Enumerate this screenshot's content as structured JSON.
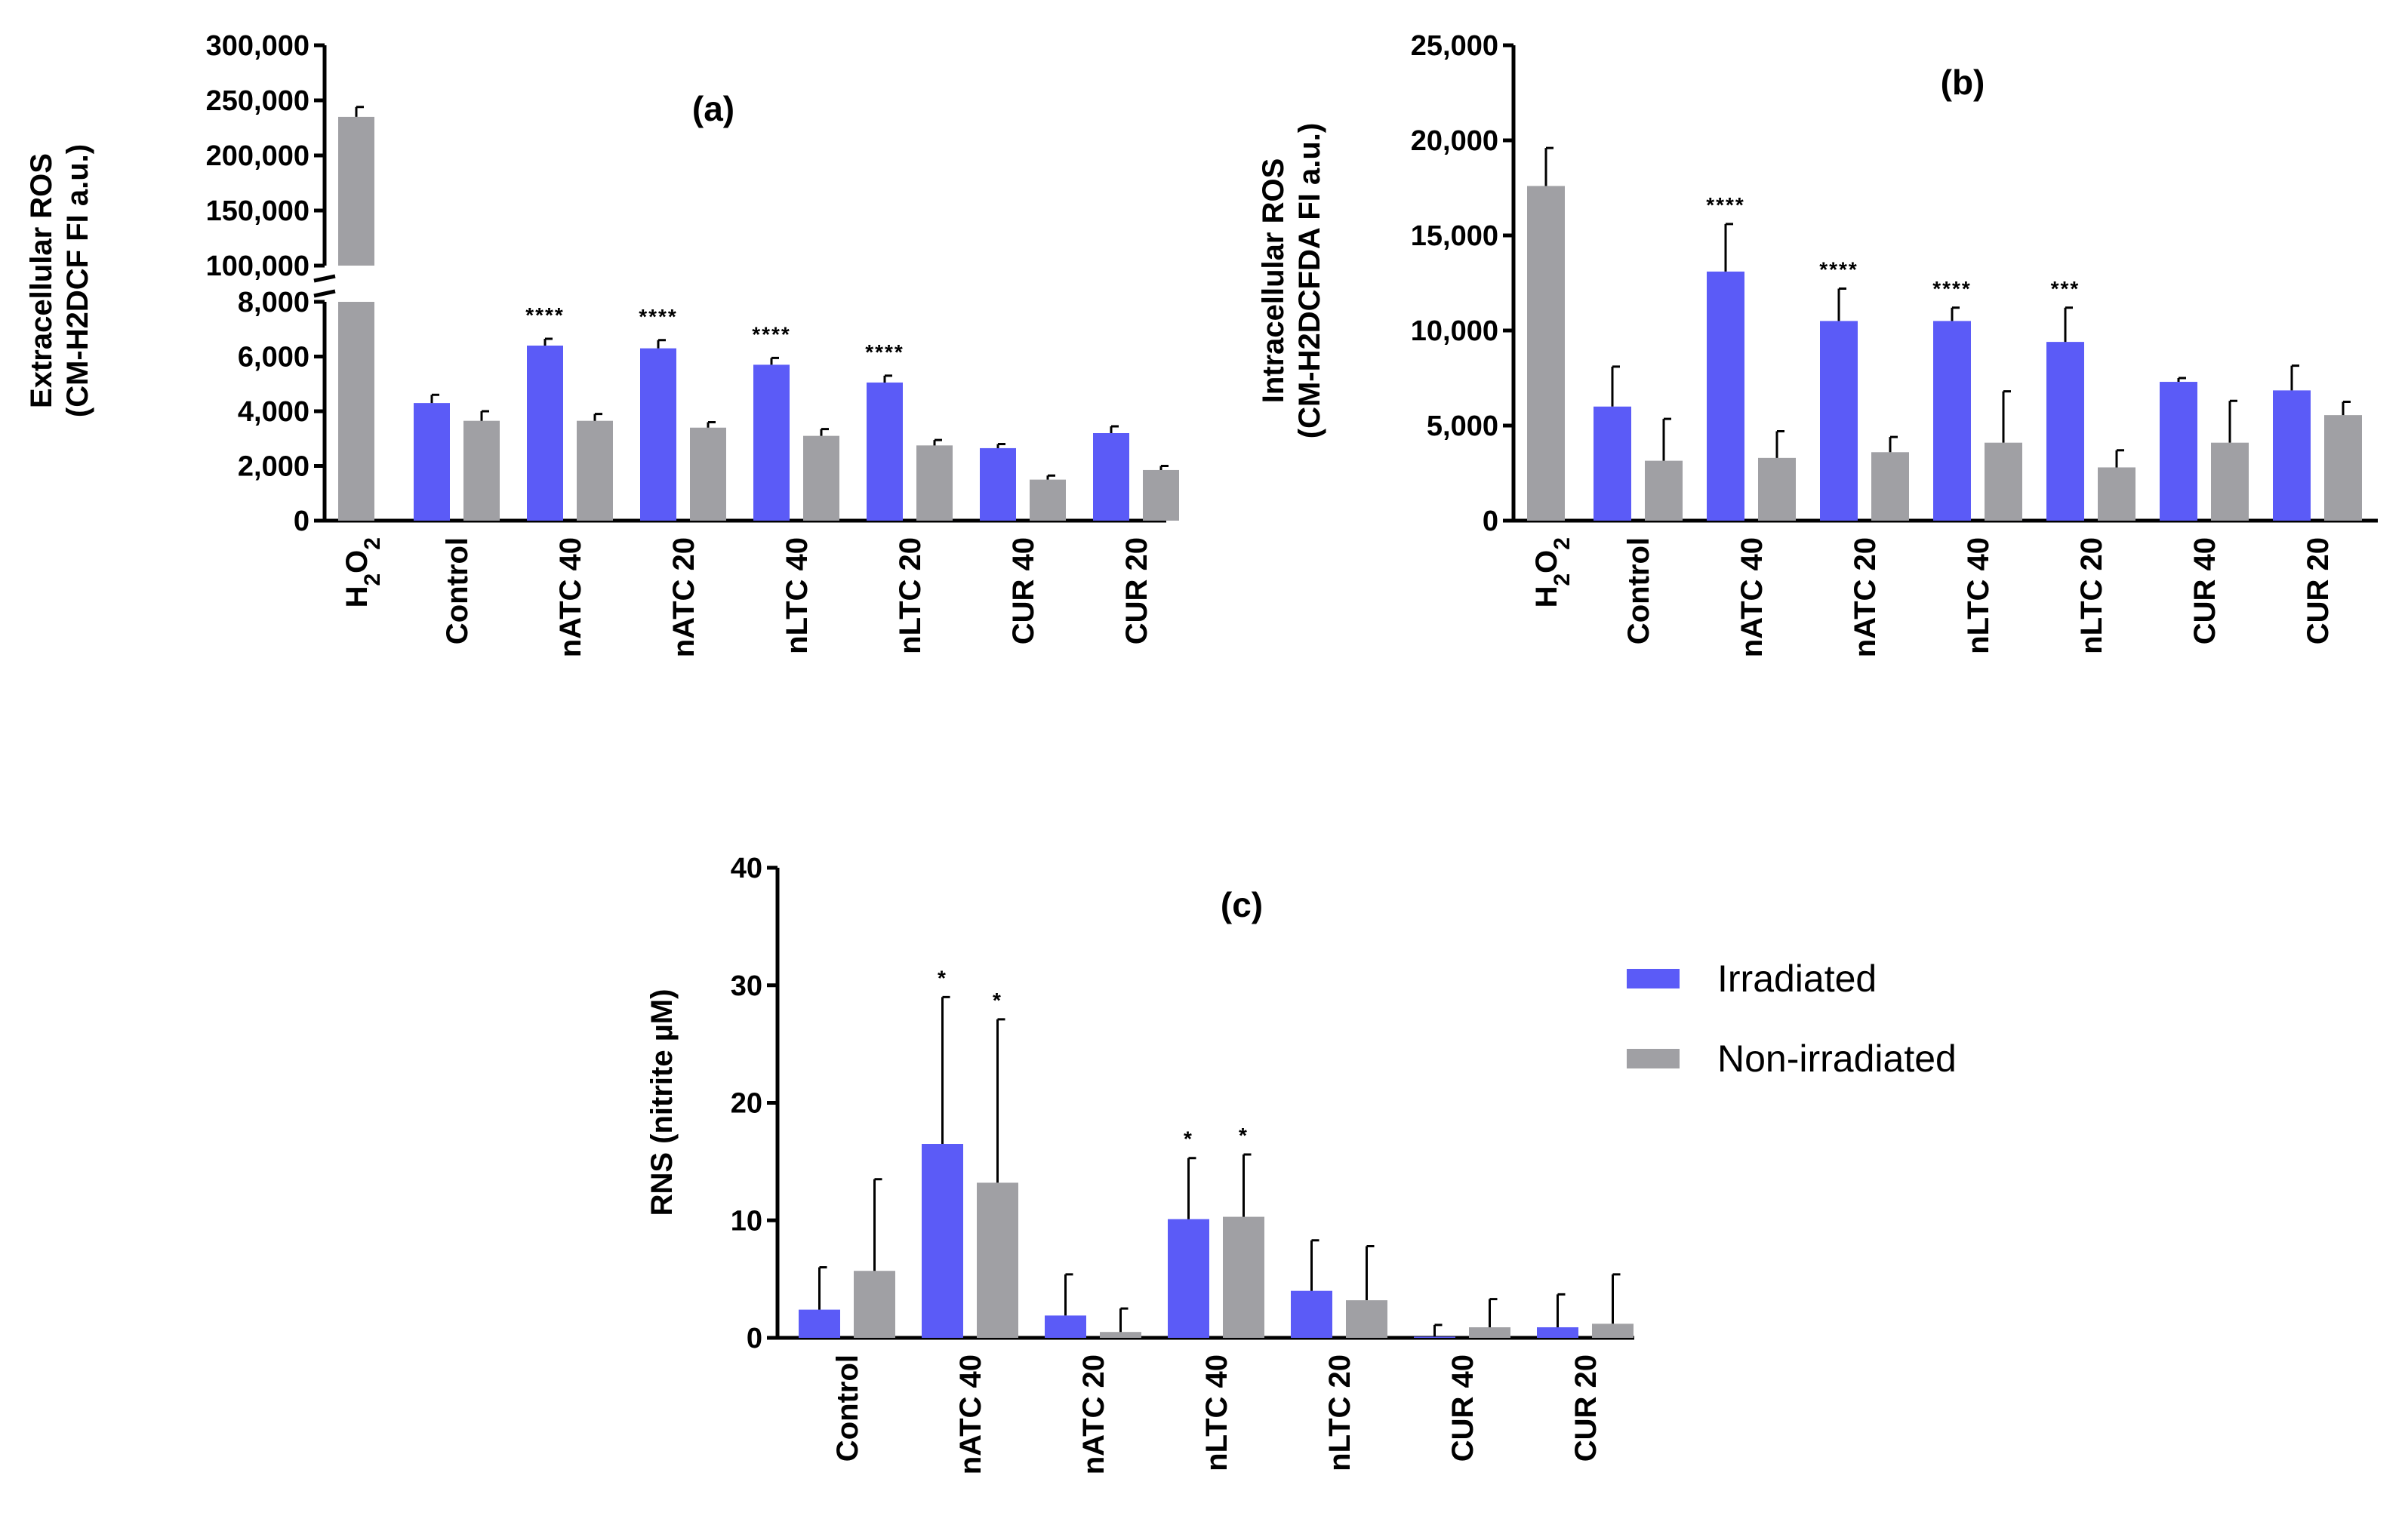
{
  "colors": {
    "irradiated": "#5b5bf7",
    "non_irradiated": "#a0a0a4",
    "h2o2": "#a0a0a4"
  },
  "legend": {
    "irradiated": "Irradiated",
    "non_irradiated": "Non-irradiated"
  },
  "chart_data": [
    {
      "id": "a",
      "type": "bar",
      "title": "(a)",
      "ylabel_line1": "Extracellular ROS",
      "ylabel_line2": "(CM-H2DCF FI a.u.)",
      "ylim_lower": [
        0,
        8000
      ],
      "ylim_upper": [
        100000,
        300000
      ],
      "y_axis_break": true,
      "yticks_lower": [
        "0",
        "2,000",
        "4,000",
        "6,000",
        "8,000"
      ],
      "yticks_upper": [
        "100,000",
        "150,000",
        "200,000",
        "250,000",
        "300,000"
      ],
      "reference": {
        "label": "H2O2",
        "value": 235000,
        "error": 9000
      },
      "categories": [
        "Control",
        "nATC 40",
        "nATC 20",
        "nLTC 40",
        "nLTC 20",
        "CUR 40",
        "CUR 20"
      ],
      "series": [
        {
          "name": "Irradiated",
          "values": [
            4300,
            6400,
            6300,
            5700,
            5050,
            2650,
            3200
          ],
          "errors": [
            300,
            250,
            300,
            250,
            250,
            150,
            250
          ]
        },
        {
          "name": "Non-irradiated",
          "values": [
            3650,
            3650,
            3400,
            3100,
            2750,
            1500,
            1850
          ],
          "errors": [
            350,
            250,
            200,
            250,
            200,
            150,
            150
          ]
        }
      ],
      "annotations": [
        {
          "category": "nATC 40",
          "series": 0,
          "text": "****"
        },
        {
          "category": "nATC 20",
          "series": 0,
          "text": "****"
        },
        {
          "category": "nLTC 40",
          "series": 0,
          "text": "****"
        },
        {
          "category": "nLTC 20",
          "series": 0,
          "text": "****"
        }
      ]
    },
    {
      "id": "b",
      "type": "bar",
      "title": "(b)",
      "ylabel_line1": "Intracellular ROS",
      "ylabel_line2": "(CM-H2DCFDA FI a.u.)",
      "ylim": [
        0,
        25000
      ],
      "yticks": [
        "0",
        "5,000",
        "10,000",
        "15,000",
        "20,000",
        "25,000"
      ],
      "reference": {
        "label": "H2O2",
        "value": 17600,
        "error": 2000
      },
      "categories": [
        "Control",
        "nATC 40",
        "nATC 20",
        "nLTC 40",
        "nLTC 20",
        "CUR 40",
        "CUR 20"
      ],
      "series": [
        {
          "name": "Irradiated",
          "values": [
            6000,
            13100,
            10500,
            10500,
            9400,
            7300,
            6850
          ],
          "errors": [
            2100,
            2500,
            1700,
            700,
            1800,
            200,
            1300
          ]
        },
        {
          "name": "Non-irradiated",
          "values": [
            3150,
            3300,
            3600,
            4100,
            2800,
            4100,
            5550
          ],
          "errors": [
            2200,
            1400,
            800,
            2700,
            900,
            2200,
            700
          ]
        }
      ],
      "annotations": [
        {
          "category": "nATC 40",
          "series": 0,
          "text": "****"
        },
        {
          "category": "nATC 20",
          "series": 0,
          "text": "****"
        },
        {
          "category": "nLTC 40",
          "series": 0,
          "text": "****"
        },
        {
          "category": "nLTC 20",
          "series": 0,
          "text": "***"
        }
      ]
    },
    {
      "id": "c",
      "type": "bar",
      "title": "(c)",
      "ylabel": "RNS (nitrite µM)",
      "ylim": [
        0,
        40
      ],
      "yticks": [
        "0",
        "10",
        "20",
        "30",
        "40"
      ],
      "categories": [
        "Control",
        "nATC 40",
        "nATC 20",
        "nLTC 40",
        "nLTC 20",
        "CUR 40",
        "CUR 20"
      ],
      "series": [
        {
          "name": "Irradiated",
          "values": [
            2.4,
            16.5,
            1.9,
            10.1,
            4.0,
            0.1,
            0.9
          ],
          "errors": [
            3.6,
            12.5,
            3.5,
            5.2,
            4.3,
            1.0,
            2.8
          ]
        },
        {
          "name": "Non-irradiated",
          "values": [
            5.7,
            13.2,
            0.5,
            10.3,
            3.2,
            0.9,
            1.2
          ],
          "errors": [
            7.8,
            13.9,
            2.0,
            5.3,
            4.6,
            2.4,
            4.2
          ]
        }
      ],
      "annotations": [
        {
          "category": "nATC 40",
          "series": 0,
          "text": "*"
        },
        {
          "category": "nATC 40",
          "series": 1,
          "text": "*"
        },
        {
          "category": "nLTC 40",
          "series": 0,
          "text": "*"
        },
        {
          "category": "nLTC 40",
          "series": 1,
          "text": "*"
        }
      ]
    }
  ]
}
